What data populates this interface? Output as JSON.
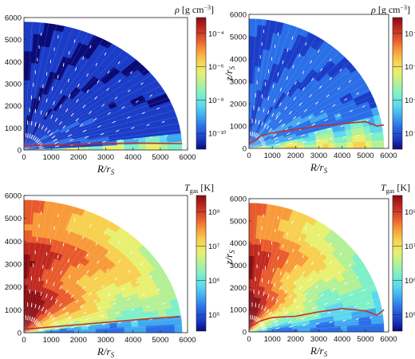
{
  "colors": {
    "map": [
      "#0a0a78",
      "#1a3cc8",
      "#2a6ee8",
      "#3fa8f0",
      "#5ad8f0",
      "#7ef0c8",
      "#b4f096",
      "#e8f070",
      "#f8d050",
      "#f89a3a",
      "#e85a2c",
      "#c02820",
      "#8a0c10"
    ],
    "contour": "#c0302a",
    "arrow": "#ffffff"
  },
  "chart_data": [
    {
      "type": "heatmap",
      "xlabel": "R/r_S",
      "ylabel": "",
      "xticks": [
        0,
        1000,
        2000,
        3000,
        4000,
        5000,
        6000
      ],
      "yticks": [
        0,
        1000,
        2000,
        3000,
        4000,
        5000,
        6000
      ],
      "xlim": [
        0,
        6000
      ],
      "ylim": [
        0,
        6000
      ],
      "colorbar": {
        "label": "ρ [g cm⁻³]",
        "ticks": [
          "10⁻⁴",
          "10⁻⁶",
          "10⁻⁸",
          "10⁻¹⁰"
        ],
        "scale": "log"
      },
      "field": "density",
      "contour": [
        [
          0,
          180
        ],
        [
          1000,
          230
        ],
        [
          2000,
          260
        ],
        [
          3000,
          290
        ],
        [
          4000,
          310
        ],
        [
          5000,
          300
        ],
        [
          5800,
          290
        ]
      ]
    },
    {
      "type": "heatmap",
      "xlabel": "R/r_S",
      "ylabel": "z/r_S",
      "xticks": [
        0,
        1000,
        2000,
        3000,
        4000,
        5000,
        6000
      ],
      "yticks": [
        0,
        1000,
        2000,
        3000,
        4000,
        5000,
        6000
      ],
      "xlim": [
        0,
        6000
      ],
      "ylim": [
        0,
        6000
      ],
      "colorbar": {
        "label": "ρ [g cm⁻³]",
        "ticks": [
          "10⁻⁴",
          "10⁻⁶",
          "10⁻⁸",
          "10⁻¹⁰"
        ],
        "scale": "log"
      },
      "field": "density",
      "contour": [
        [
          0,
          200
        ],
        [
          500,
          550
        ],
        [
          1000,
          700
        ],
        [
          2000,
          850
        ],
        [
          3000,
          1000
        ],
        [
          4000,
          1100
        ],
        [
          5000,
          1200
        ],
        [
          5500,
          1000
        ],
        [
          5800,
          1050
        ]
      ]
    },
    {
      "type": "heatmap",
      "xlabel": "R/r_S",
      "ylabel": "",
      "xticks": [
        0,
        1000,
        2000,
        3000,
        4000,
        5000,
        6000
      ],
      "yticks": [
        0,
        1000,
        2000,
        3000,
        4000,
        5000,
        6000
      ],
      "xlim": [
        0,
        6000
      ],
      "ylim": [
        0,
        6000
      ],
      "colorbar": {
        "label": "T_gas [K]",
        "ticks": [
          "10⁸",
          "10⁷",
          "10⁶",
          "10⁵"
        ],
        "scale": "log"
      },
      "field": "temperature",
      "contour": [
        [
          0,
          150
        ],
        [
          1000,
          250
        ],
        [
          2000,
          350
        ],
        [
          3000,
          450
        ],
        [
          4000,
          550
        ],
        [
          5000,
          650
        ],
        [
          5700,
          700
        ]
      ]
    },
    {
      "type": "heatmap",
      "xlabel": "R/r_S",
      "ylabel": "z/r_S",
      "xticks": [
        0,
        1000,
        2000,
        3000,
        4000,
        5000,
        6000
      ],
      "yticks": [
        0,
        1000,
        2000,
        3000,
        4000,
        5000,
        6000
      ],
      "xlim": [
        0,
        6000
      ],
      "ylim": [
        0,
        6000
      ],
      "colorbar": {
        "label": "T_gas [K]",
        "ticks": [
          "10⁸",
          "10⁷",
          "10⁶",
          "10⁵"
        ],
        "scale": "log"
      },
      "field": "temperature",
      "contour": [
        [
          0,
          200
        ],
        [
          500,
          500
        ],
        [
          1000,
          650
        ],
        [
          2000,
          700
        ],
        [
          3000,
          900
        ],
        [
          4000,
          1050
        ],
        [
          5000,
          950
        ],
        [
          5500,
          750
        ],
        [
          5800,
          1000
        ]
      ]
    }
  ]
}
